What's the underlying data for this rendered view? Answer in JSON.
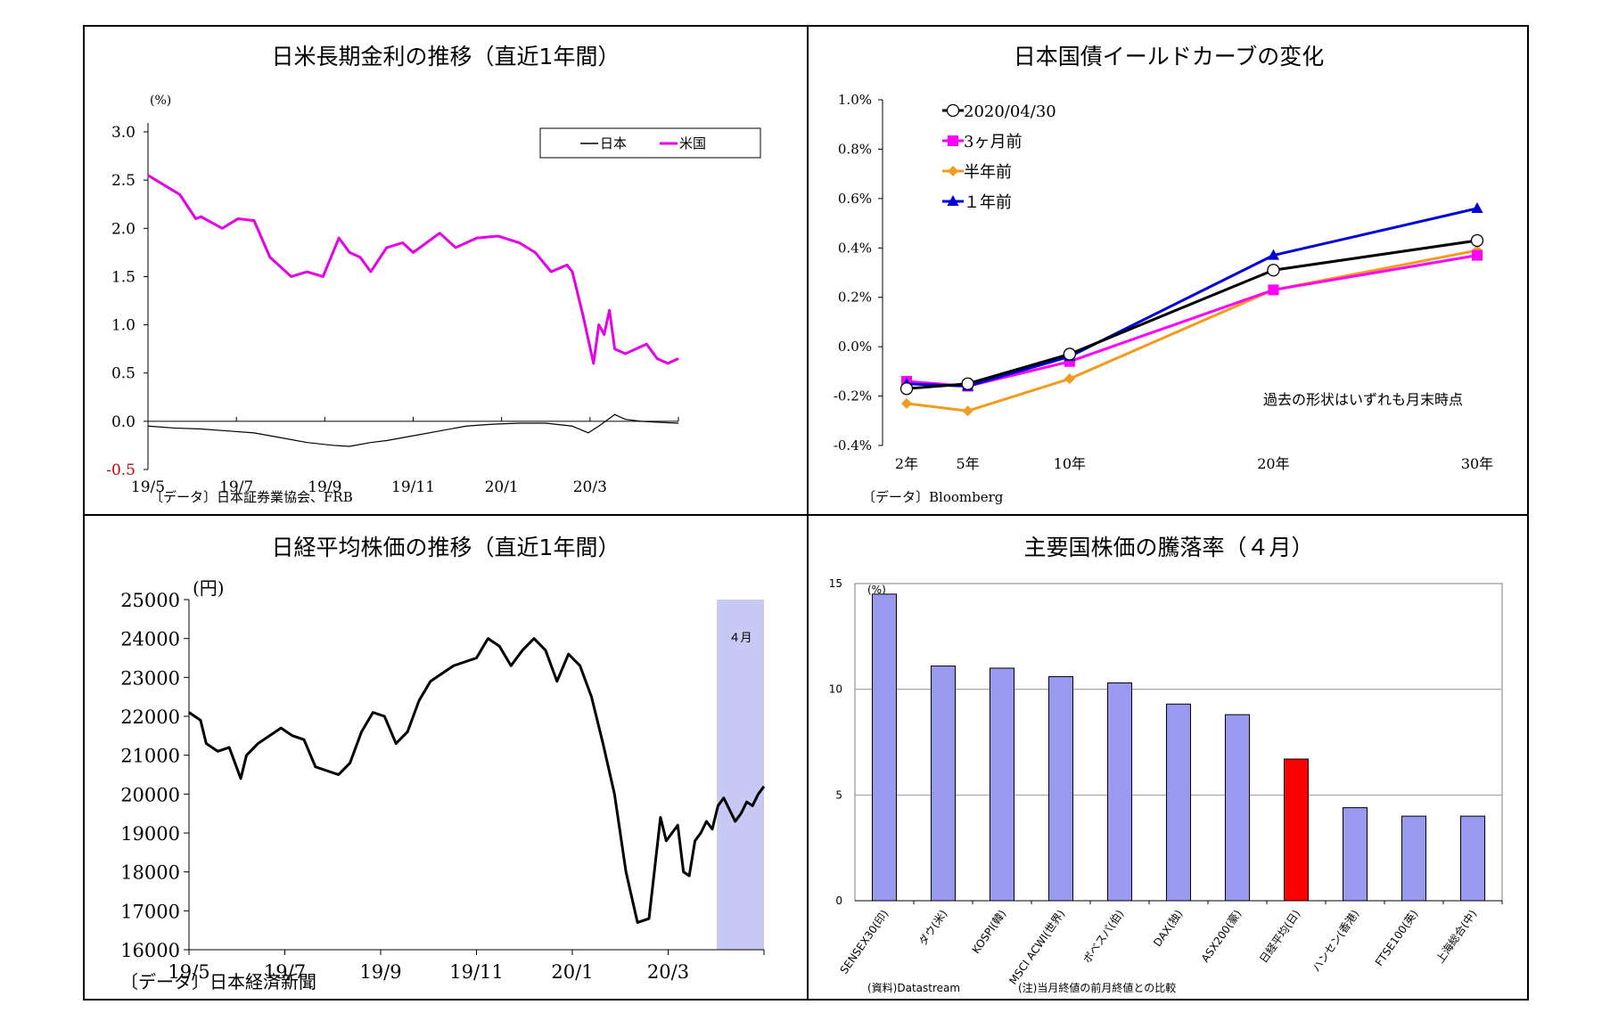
{
  "chart_data": [
    {
      "id": "jp-us-long-rates",
      "type": "line",
      "title": "日米長期金利の推移（直近1年間）",
      "y_unit": "(%)",
      "ylim": [
        -0.5,
        3.0
      ],
      "y_ticks": [
        "3.0",
        "2.5",
        "2.0",
        "1.5",
        "1.0",
        "0.5",
        "0.0",
        "-0.5"
      ],
      "x_ticks": [
        "19/5",
        "19/7",
        "19/9",
        "19/11",
        "20/1",
        "20/3"
      ],
      "negative_tick_color": "#cc0000",
      "legend": {
        "position": "top-right",
        "entries": [
          "日本",
          "米国"
        ]
      },
      "series": [
        {
          "name": "日本",
          "color": "#000000",
          "x": [
            0,
            0.05,
            0.1,
            0.15,
            0.2,
            0.25,
            0.3,
            0.35,
            0.38,
            0.42,
            0.45,
            0.5,
            0.55,
            0.6,
            0.65,
            0.7,
            0.75,
            0.8,
            0.83,
            0.85,
            0.88,
            0.9,
            0.93,
            0.96,
            1.0
          ],
          "values": [
            -0.05,
            -0.07,
            -0.08,
            -0.1,
            -0.12,
            -0.17,
            -0.22,
            -0.25,
            -0.26,
            -0.22,
            -0.2,
            -0.15,
            -0.1,
            -0.05,
            -0.03,
            -0.02,
            -0.02,
            -0.05,
            -0.12,
            -0.05,
            0.07,
            0.02,
            0.0,
            -0.01,
            -0.02
          ]
        },
        {
          "name": "米国",
          "color": "#e600e6",
          "x": [
            0,
            0.03,
            0.06,
            0.09,
            0.1,
            0.14,
            0.17,
            0.2,
            0.23,
            0.27,
            0.3,
            0.33,
            0.36,
            0.38,
            0.4,
            0.42,
            0.45,
            0.48,
            0.5,
            0.55,
            0.58,
            0.62,
            0.66,
            0.7,
            0.73,
            0.76,
            0.79,
            0.8,
            0.82,
            0.84,
            0.85,
            0.86,
            0.87,
            0.88,
            0.9,
            0.92,
            0.94,
            0.96,
            0.98,
            1.0
          ],
          "values": [
            2.55,
            2.45,
            2.35,
            2.1,
            2.12,
            2.0,
            2.1,
            2.08,
            1.7,
            1.5,
            1.55,
            1.5,
            1.9,
            1.75,
            1.7,
            1.55,
            1.8,
            1.85,
            1.75,
            1.95,
            1.8,
            1.9,
            1.92,
            1.85,
            1.75,
            1.55,
            1.62,
            1.55,
            1.1,
            0.6,
            1.0,
            0.9,
            1.15,
            0.75,
            0.7,
            0.75,
            0.8,
            0.65,
            0.6,
            0.65
          ]
        }
      ],
      "source": "〔データ〕日本証券業協会、FRB"
    },
    {
      "id": "jgb-yield-curve",
      "type": "line",
      "title": "日本国債イールドカーブの変化",
      "ylim": [
        -0.4,
        1.0
      ],
      "y_ticks": [
        "1.0%",
        "0.8%",
        "0.6%",
        "0.4%",
        "0.2%",
        "0.0%",
        "-0.2%",
        "-0.4%"
      ],
      "categories": [
        "2年",
        "5年",
        "10年",
        "20年",
        "30年"
      ],
      "x": [
        2,
        5,
        10,
        20,
        30
      ],
      "legend": {
        "position": "top-left"
      },
      "series": [
        {
          "name": "2020/04/30",
          "color": "#000000",
          "marker": "open-circle",
          "values": [
            -0.17,
            -0.15,
            -0.03,
            0.31,
            0.43
          ]
        },
        {
          "name": "3ヶ月前",
          "color": "#ff00ff",
          "marker": "square",
          "values": [
            -0.14,
            -0.16,
            -0.06,
            0.23,
            0.37
          ]
        },
        {
          "name": "半年前",
          "color": "#f29b1c",
          "marker": "diamond",
          "values": [
            -0.23,
            -0.26,
            -0.13,
            0.23,
            0.39
          ]
        },
        {
          "name": "１年前",
          "color": "#0000d9",
          "marker": "triangle",
          "values": [
            -0.15,
            -0.16,
            -0.04,
            0.37,
            0.56
          ]
        }
      ],
      "annotation": "過去の形状はいずれも月末時点",
      "source": "〔データ〕Bloomberg"
    },
    {
      "id": "nikkei-average",
      "type": "line",
      "title": "日経平均株価の推移（直近1年間）",
      "y_unit": "(円)",
      "ylim": [
        16000,
        25000
      ],
      "y_ticks": [
        "25000",
        "24000",
        "23000",
        "22000",
        "21000",
        "20000",
        "19000",
        "18000",
        "17000",
        "16000"
      ],
      "x_ticks": [
        "19/5",
        "19/7",
        "19/9",
        "19/11",
        "20/1",
        "20/3"
      ],
      "highlight": {
        "label": "４月",
        "color": "#c8c8f5",
        "from": 0.918,
        "to": 1.0
      },
      "series": [
        {
          "name": "日経平均",
          "color": "#000000",
          "x": [
            0,
            0.02,
            0.03,
            0.05,
            0.07,
            0.09,
            0.1,
            0.12,
            0.14,
            0.16,
            0.18,
            0.2,
            0.22,
            0.24,
            0.26,
            0.28,
            0.3,
            0.32,
            0.34,
            0.36,
            0.38,
            0.4,
            0.42,
            0.44,
            0.46,
            0.48,
            0.5,
            0.52,
            0.54,
            0.56,
            0.58,
            0.6,
            0.62,
            0.64,
            0.66,
            0.68,
            0.7,
            0.72,
            0.74,
            0.76,
            0.78,
            0.8,
            0.82,
            0.83,
            0.85,
            0.86,
            0.87,
            0.88,
            0.89,
            0.9,
            0.91,
            0.92,
            0.93,
            0.94,
            0.95,
            0.96,
            0.97,
            0.98,
            0.99,
            1.0
          ],
          "values": [
            22100,
            21900,
            21300,
            21100,
            21200,
            20400,
            21000,
            21300,
            21500,
            21700,
            21500,
            21400,
            20700,
            20600,
            20500,
            20800,
            21600,
            22100,
            22000,
            21300,
            21600,
            22400,
            22900,
            23100,
            23300,
            23400,
            23500,
            24000,
            23800,
            23300,
            23700,
            24000,
            23700,
            22900,
            23600,
            23300,
            22500,
            21300,
            20000,
            18000,
            16700,
            16800,
            19400,
            18800,
            19200,
            18000,
            17900,
            18800,
            19000,
            19300,
            19100,
            19700,
            19900,
            19600,
            19300,
            19500,
            19800,
            19700,
            20000,
            20200
          ]
        }
      ],
      "source": "〔データ〕日本経済新聞"
    },
    {
      "id": "major-stock-index-changes",
      "type": "bar",
      "title": "主要国株価の騰落率（４月）",
      "y_unit": "(%)",
      "ylim": [
        0,
        15
      ],
      "y_ticks": [
        "15",
        "10",
        "5",
        "0"
      ],
      "categories": [
        "SENSEX30(印)",
        "ダウ(米)",
        "KOSPI(韓)",
        "MSCI ACWI(世界)",
        "ボベスパ(伯)",
        "DAX(独)",
        "ASX200(豪)",
        "日経平均(日)",
        "ハンセン(香港)",
        "FTSE100(英)",
        "上海総合(中)"
      ],
      "values": [
        14.5,
        11.1,
        11.0,
        10.6,
        10.3,
        9.3,
        8.8,
        6.7,
        4.4,
        4.0,
        4.0
      ],
      "bar_color": "#9999f0",
      "highlight_color": "#ff0000",
      "highlight_index": 7,
      "notes": [
        "(資料)Datastream",
        "(注)当月終値の前月終値との比較"
      ]
    }
  ]
}
